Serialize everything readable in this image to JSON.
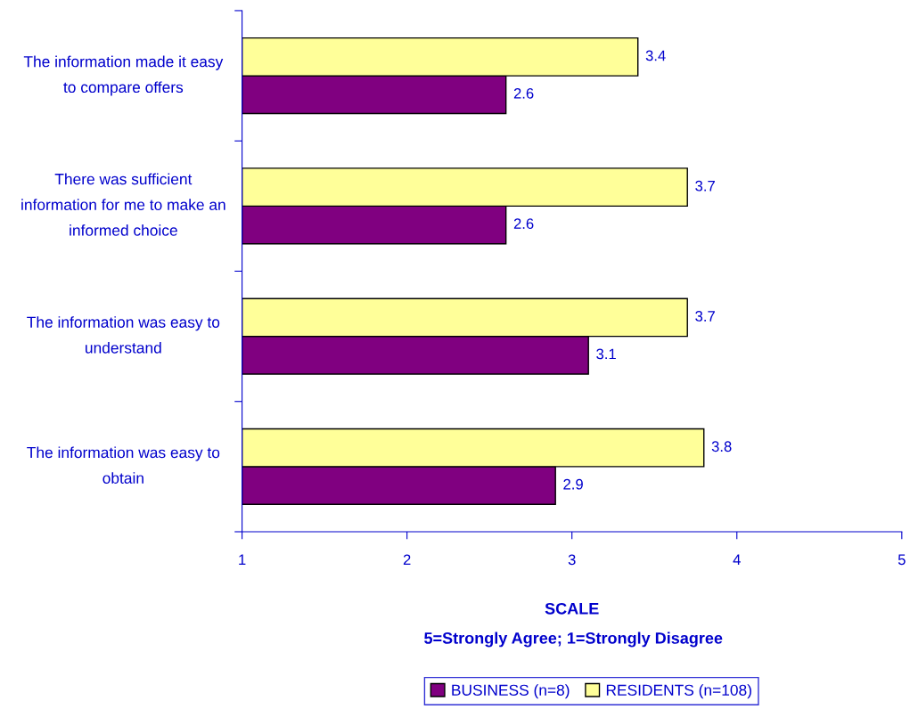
{
  "chart_data": {
    "type": "bar",
    "orientation": "horizontal",
    "categories": [
      "The information made it easy to compare offers",
      "There was sufficient information for me to make an informed choice",
      "The information was easy to understand",
      "The information was easy to obtain"
    ],
    "series": [
      {
        "name": "BUSINESS (n=8)",
        "color": "#800080",
        "values": [
          2.6,
          2.6,
          3.1,
          2.9
        ]
      },
      {
        "name": "RESIDENTS (n=108)",
        "color": "#ffff99",
        "values": [
          3.4,
          3.7,
          3.7,
          3.8
        ]
      }
    ],
    "xlim": [
      1,
      5
    ],
    "xticks": [
      1,
      2,
      3,
      4,
      5
    ],
    "xlabel": "SCALE",
    "annotations": [
      "5=Strongly Agree; 1=Strongly Disagree"
    ],
    "data_labels": true,
    "legend": "bottom",
    "grid": false
  }
}
